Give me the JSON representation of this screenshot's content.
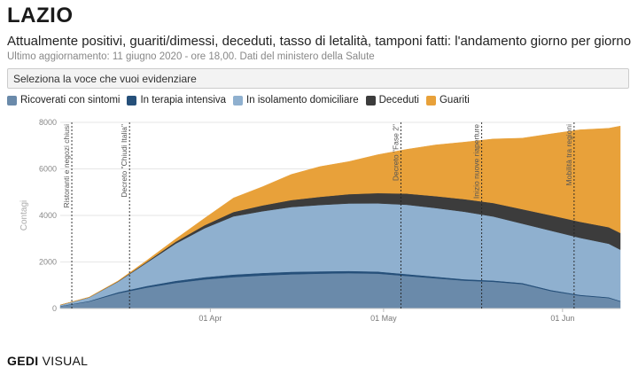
{
  "header": {
    "title": "LAZIO",
    "subtitle": "Attualmente positivi, guariti/dimessi, deceduti, tasso di letalità, tamponi fatti: l'andamento giorno per giorno",
    "updated": "Ultimo aggiornamento: 11 giugno 2020 - ore 18,00. Dati del ministero della Salute"
  },
  "selector": {
    "label": "Seleziona la voce che vuoi evidenziare"
  },
  "footer": {
    "brand": "GEDI",
    "rest": " VISUAL"
  },
  "chart_data": {
    "type": "area",
    "stacked": true,
    "title": "",
    "xlabel": "",
    "ylabel": "Contagi",
    "ylim": [
      0,
      8000
    ],
    "yticks": [
      0,
      2000,
      4000,
      6000,
      8000
    ],
    "xticks": [
      {
        "date": "2020-04-01",
        "label": "01 Apr"
      },
      {
        "date": "2020-05-01",
        "label": "01 May"
      },
      {
        "date": "2020-06-01",
        "label": "01 Jun"
      }
    ],
    "xlim": [
      "2020-03-06",
      "2020-06-11"
    ],
    "grid": true,
    "legend_position": "top-left",
    "x": [
      "2020-03-06",
      "2020-03-11",
      "2020-03-16",
      "2020-03-21",
      "2020-03-26",
      "2020-03-31",
      "2020-04-05",
      "2020-04-10",
      "2020-04-15",
      "2020-04-20",
      "2020-04-25",
      "2020-04-30",
      "2020-05-05",
      "2020-05-10",
      "2020-05-15",
      "2020-05-20",
      "2020-05-25",
      "2020-05-30",
      "2020-06-04",
      "2020-06-09",
      "2020-06-11"
    ],
    "series": [
      {
        "name": "Ricoverati con sintomi",
        "color": "#6a8aaa",
        "values": [
          100,
          300,
          650,
          900,
          1100,
          1250,
          1350,
          1420,
          1470,
          1500,
          1520,
          1500,
          1400,
          1300,
          1200,
          1150,
          1050,
          750,
          550,
          450,
          300
        ]
      },
      {
        "name": "In terapia intensiva",
        "color": "#26507a",
        "values": [
          10,
          25,
          50,
          70,
          90,
          100,
          110,
          110,
          110,
          100,
          95,
          90,
          80,
          70,
          60,
          55,
          50,
          45,
          40,
          35,
          30
        ]
      },
      {
        "name": "In isolamento domiciliare",
        "color": "#8fb0cf",
        "values": [
          40,
          150,
          450,
          1000,
          1600,
          2100,
          2500,
          2650,
          2780,
          2850,
          2900,
          2930,
          2980,
          2950,
          2900,
          2750,
          2550,
          2550,
          2450,
          2300,
          2200
        ]
      },
      {
        "name": "Deceduti",
        "color": "#3c3c3c",
        "values": [
          0,
          5,
          15,
          40,
          80,
          130,
          190,
          250,
          300,
          350,
          400,
          440,
          480,
          510,
          540,
          580,
          620,
          660,
          690,
          710,
          720
        ]
      },
      {
        "name": "Guariti",
        "color": "#e8a13a",
        "values": [
          0,
          10,
          20,
          60,
          120,
          300,
          600,
          800,
          1100,
          1300,
          1400,
          1650,
          1900,
          2200,
          2450,
          2750,
          3050,
          3500,
          3950,
          4250,
          4590
        ]
      }
    ],
    "annotations": [
      {
        "date": "2020-03-08",
        "label": "Ristoranti e negozi chiusi"
      },
      {
        "date": "2020-03-18",
        "label": "Decreto \"Chiudi Italia\""
      },
      {
        "date": "2020-05-04",
        "label": "Decreto \"Fase 2\""
      },
      {
        "date": "2020-05-18",
        "label": "Inizio nuove riaperture"
      },
      {
        "date": "2020-06-03",
        "label": "Mobilità tra regioni"
      }
    ]
  }
}
